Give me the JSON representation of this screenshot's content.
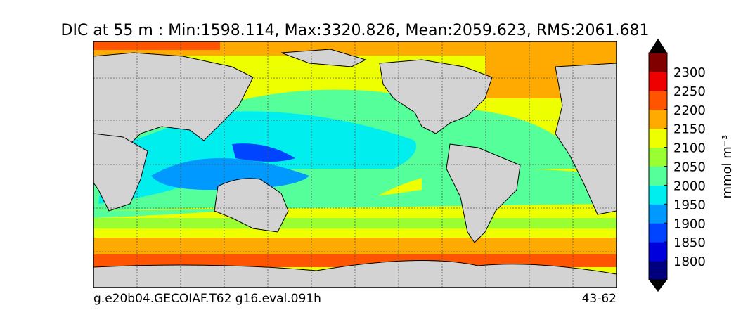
{
  "title": "DIC at 55 m : Min:1598.114, Max:3320.826, Mean:2059.623, RMS:2061.681",
  "colorbar": {
    "label": "mmol m⁻³",
    "lim": [
      1750,
      2350
    ],
    "ticks": [
      1800,
      1850,
      1900,
      1950,
      2000,
      2050,
      2100,
      2150,
      2200,
      2250,
      2300
    ],
    "colors": [
      "#00007f",
      "#0000dd",
      "#0044ff",
      "#0099ff",
      "#00eeee",
      "#55ff99",
      "#99ff33",
      "#eeff00",
      "#ffaa00",
      "#ff5500",
      "#ee0000",
      "#800000"
    ],
    "extend": "both"
  },
  "footer_left": "g.e20b04.GECOIAF.T62 g16.eval.091h",
  "footer_right": "43-62"
}
